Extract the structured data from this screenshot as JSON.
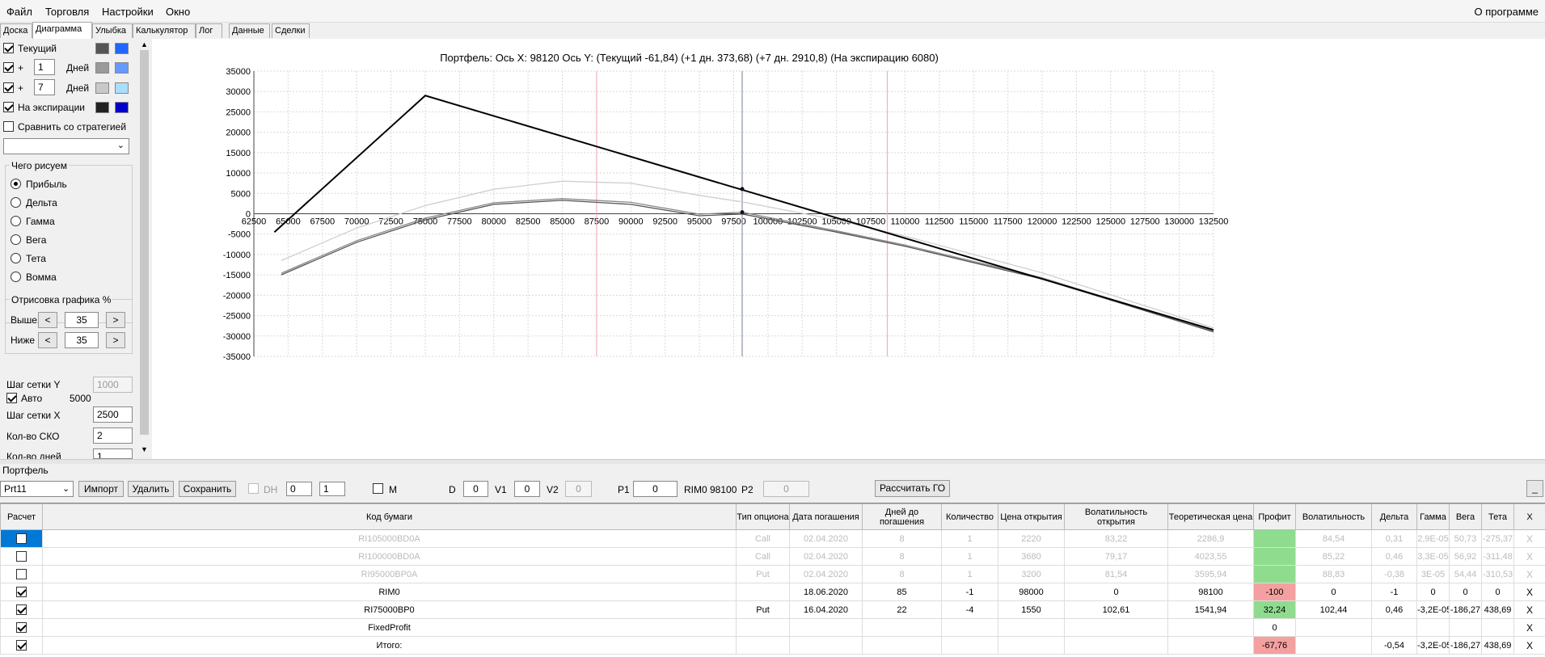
{
  "menu": {
    "items": [
      "Файл",
      "Торговля",
      "Настройки",
      "Окно"
    ],
    "about": "О программе"
  },
  "tabs": [
    "Доска",
    "Диаграмма",
    "Улыбка",
    "Калькулятор",
    "Лог",
    "Данные",
    "Сделки"
  ],
  "left": {
    "current_label": "Текущий",
    "plus": "+",
    "days_label": "Дней",
    "days1": "1",
    "days2": "7",
    "expiry_label": "На экспирации",
    "compare_label": "Сравнить со стратегией",
    "draw_group": "Чего рисуем",
    "draw_options": [
      "Прибыль",
      "Дельта",
      "Гамма",
      "Вега",
      "Тета",
      "Вомма"
    ],
    "render_group": "Отрисовка графика %",
    "above_label": "Выше",
    "below_label": "Ниже",
    "above_val": "35",
    "below_val": "35",
    "prev": "<",
    "next": ">",
    "grid_y_label": "Шаг сетки Y",
    "grid_y_val": "1000",
    "auto_label": "Авто",
    "auto_val": "5000",
    "grid_x_label": "Шаг сетки X",
    "grid_x_val": "2500",
    "sko_label": "Кол-во СКО",
    "sko_val": "2",
    "days_count_label": "Кол-во дней",
    "days_count_val": "1",
    "colors": {
      "current_dark": "#555555",
      "current_light": "#2266ff",
      "d1_dark": "#9a9a9a",
      "d1_light": "#6699ff",
      "d7_dark": "#c8c8c8",
      "d7_light": "#aaddff",
      "exp_dark": "#222222",
      "exp_light": "#0000cc"
    }
  },
  "chart_data": {
    "type": "line",
    "title": "Портфель:  Ось X: 98120 Ось Y:  (Текущий -61,84)  (+1 дн. 373,68)  (+7 дн. 2910,8)  (На экспирацию 6080)",
    "xlim": [
      62500,
      132500
    ],
    "ylim": [
      -35000,
      35000
    ],
    "x_ticks": [
      "62500",
      "65000",
      "67500",
      "70000",
      "72500",
      "75000",
      "77500",
      "80000",
      "82500",
      "85000",
      "87500",
      "90000",
      "92500",
      "95000",
      "97500",
      "100000",
      "102500",
      "105000",
      "107500",
      "110000",
      "112500",
      "115000",
      "117500",
      "120000",
      "122500",
      "125000",
      "127500",
      "130000",
      "132500"
    ],
    "y_ticks": [
      "35000",
      "30000",
      "25000",
      "20000",
      "15000",
      "10000",
      "5000",
      "0",
      "-5000",
      "-10000",
      "-15000",
      "-20000",
      "-25000",
      "-30000",
      "-35000"
    ],
    "cursor_x": 98120,
    "sd_lines": [
      87500,
      108700
    ],
    "series": [
      {
        "line_id": "expiry",
        "color": "#000000",
        "x": [
          64000,
          75000,
          132500
        ],
        "y": [
          -4500,
          29000,
          -28500
        ]
      },
      {
        "line_id": "current",
        "color": "#555555",
        "x": [
          64500,
          70000,
          75000,
          80000,
          85000,
          90000,
          95000,
          98120,
          105000,
          110000,
          120000,
          132500
        ],
        "y": [
          -15000,
          -7000,
          -1500,
          2300,
          3300,
          2300,
          -500,
          -62,
          -4500,
          -8000,
          -16000,
          -29000
        ]
      },
      {
        "line_id": "plus1",
        "color": "#888888",
        "x": [
          64500,
          70000,
          75000,
          80000,
          85000,
          90000,
          95000,
          98120,
          105000,
          110000,
          120000,
          132500
        ],
        "y": [
          -14600,
          -6600,
          -1100,
          2700,
          3700,
          2800,
          -100,
          374,
          -4200,
          -7700,
          -15700,
          -28800
        ]
      },
      {
        "line_id": "plus7",
        "color": "#cfcfcf",
        "x": [
          64500,
          70000,
          75000,
          80000,
          85000,
          90000,
          95000,
          98120,
          105000,
          110000,
          120000,
          132500
        ],
        "y": [
          -11500,
          -3500,
          2000,
          6000,
          8000,
          7500,
          4500,
          2911,
          -1500,
          -5500,
          -14500,
          -28000
        ]
      }
    ],
    "markers": [
      {
        "x": 98120,
        "y": 6080
      },
      {
        "x": 98120,
        "y": 374
      }
    ]
  },
  "portfolio": {
    "section_label": "Портфель",
    "selected": "Prt11",
    "import": "Импорт",
    "delete": "Удалить",
    "save": "Сохранить",
    "dh": "DH",
    "dh1": "0",
    "dh2": "1",
    "m": "M",
    "d_label": "D",
    "d_val": "0",
    "v1_label": "V1",
    "v1_val": "0",
    "v2_label": "V2",
    "v2_val": "0",
    "p1_label": "P1",
    "p1_val": "0",
    "rim": "RIM0 98100",
    "p2_label": "P2",
    "p2_val": "0",
    "calc_go": "Рассчитать ГО",
    "minimize": "_"
  },
  "table": {
    "headers": [
      "Расчет",
      "Код бумаги",
      "Тип опциона",
      "Дата погашения",
      "Дней до погашения",
      "Количество",
      "Цена открытия",
      "Волатильность открытия",
      "Теоретическая цена",
      "Профит",
      "Волатильность",
      "Дельта",
      "Гамма",
      "Вега",
      "Тета",
      "X"
    ],
    "rows": [
      {
        "check": false,
        "dim": true,
        "code": "RI105000BD0A",
        "type": "Call",
        "date": "02.04.2020",
        "days": "8",
        "qty": "1",
        "open": "2220",
        "vol_open": "83,22",
        "theo": "2286,9",
        "profit": "",
        "profit_bg": "green",
        "vol": "84,54",
        "delta": "0,31",
        "gamma": "2,9E-05",
        "vega": "50,73",
        "theta": "-275,37",
        "x": "X"
      },
      {
        "check": false,
        "dim": true,
        "code": "RI100000BD0A",
        "type": "Call",
        "date": "02.04.2020",
        "days": "8",
        "qty": "1",
        "open": "3680",
        "vol_open": "79,17",
        "theo": "4023,55",
        "profit": "",
        "profit_bg": "green",
        "vol": "85,22",
        "delta": "0,46",
        "gamma": "3,3E-05",
        "vega": "56,92",
        "theta": "-311,48",
        "x": "X"
      },
      {
        "check": false,
        "dim": true,
        "code": "RI95000BP0A",
        "type": "Put",
        "date": "02.04.2020",
        "days": "8",
        "qty": "1",
        "open": "3200",
        "vol_open": "81,54",
        "theo": "3595,94",
        "profit": "",
        "profit_bg": "green",
        "vol": "88,83",
        "delta": "-0,38",
        "gamma": "3E-05",
        "vega": "54,44",
        "theta": "-310,53",
        "x": "X"
      },
      {
        "check": true,
        "dim": false,
        "code": "RIM0",
        "type": "",
        "date": "18.06.2020",
        "days": "85",
        "qty": "-1",
        "open": "98000",
        "vol_open": "0",
        "theo": "98100",
        "profit": "-100",
        "profit_bg": "red",
        "vol": "0",
        "delta": "-1",
        "gamma": "0",
        "vega": "0",
        "theta": "0",
        "x": "X"
      },
      {
        "check": true,
        "dim": false,
        "code": "RI75000BP0",
        "type": "Put",
        "date": "16.04.2020",
        "days": "22",
        "qty": "-4",
        "open": "1550",
        "vol_open": "102,61",
        "theo": "1541,94",
        "profit": "32,24",
        "profit_bg": "green",
        "vol": "102,44",
        "delta": "0,46",
        "gamma": "-3,2E-05",
        "vega": "-186,27",
        "theta": "438,69",
        "x": "X"
      },
      {
        "check": true,
        "dim": false,
        "code": "FixedProfit",
        "type": "",
        "date": "",
        "days": "",
        "qty": "",
        "open": "",
        "vol_open": "",
        "theo": "",
        "profit": "0",
        "profit_bg": "",
        "vol": "",
        "delta": "",
        "gamma": "",
        "vega": "",
        "theta": "",
        "x": "X"
      },
      {
        "check": true,
        "dim": false,
        "code": "Итого:",
        "type": "",
        "date": "",
        "days": "",
        "qty": "",
        "open": "",
        "vol_open": "",
        "theo": "",
        "profit": "-67,76",
        "profit_bg": "red",
        "vol": "",
        "delta": "-0,54",
        "gamma": "-3,2E-05",
        "vega": "-186,27",
        "theta": "438,69",
        "x": "X"
      }
    ]
  }
}
